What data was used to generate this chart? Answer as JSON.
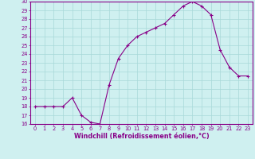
{
  "x": [
    0,
    1,
    2,
    3,
    4,
    5,
    6,
    7,
    8,
    9,
    10,
    11,
    12,
    13,
    14,
    15,
    16,
    17,
    18,
    19,
    20,
    21,
    22,
    23
  ],
  "y": [
    18.0,
    18.0,
    18.0,
    18.0,
    19.0,
    17.0,
    16.2,
    16.0,
    20.5,
    23.5,
    25.0,
    26.0,
    26.5,
    27.0,
    27.5,
    28.5,
    29.5,
    30.0,
    29.5,
    28.5,
    24.5,
    22.5,
    21.5,
    21.5
  ],
  "line_color": "#880088",
  "marker": "+",
  "bg_color": "#cff0f0",
  "grid_color": "#a8d8d8",
  "axis_color": "#880088",
  "border_color": "#880088",
  "xlabel": "Windchill (Refroidissement éolien,°C)",
  "xlim": [
    -0.5,
    23.5
  ],
  "ylim": [
    16,
    30
  ],
  "yticks": [
    16,
    17,
    18,
    19,
    20,
    21,
    22,
    23,
    24,
    25,
    26,
    27,
    28,
    29,
    30
  ],
  "xticks": [
    0,
    1,
    2,
    3,
    4,
    5,
    6,
    7,
    8,
    9,
    10,
    11,
    12,
    13,
    14,
    15,
    16,
    17,
    18,
    19,
    20,
    21,
    22,
    23
  ],
  "tick_fontsize": 4.8,
  "xlabel_fontsize": 5.8,
  "linewidth": 0.8,
  "markersize": 2.8,
  "markeredgewidth": 0.8
}
